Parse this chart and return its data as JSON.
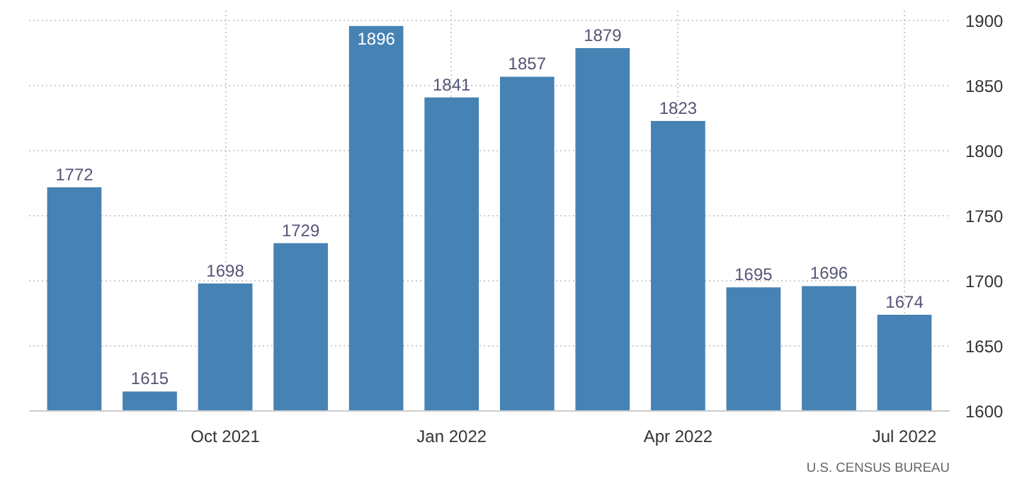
{
  "chart_data": {
    "type": "bar",
    "categories": [
      null,
      null,
      "Oct 2021",
      null,
      null,
      "Jan 2022",
      null,
      null,
      "Apr 2022",
      null,
      null,
      "Jul 2022"
    ],
    "values": [
      1772,
      1615,
      1698,
      1729,
      1896,
      1841,
      1857,
      1879,
      1823,
      1695,
      1696,
      1674
    ],
    "color": "#4682b4",
    "ylim": [
      1600,
      1910
    ],
    "yticks": [
      1600,
      1650,
      1700,
      1750,
      1800,
      1850,
      1900
    ],
    "grid": true,
    "data_labels": true,
    "annotations": [
      "U.S. CENSUS BUREAU"
    ]
  }
}
